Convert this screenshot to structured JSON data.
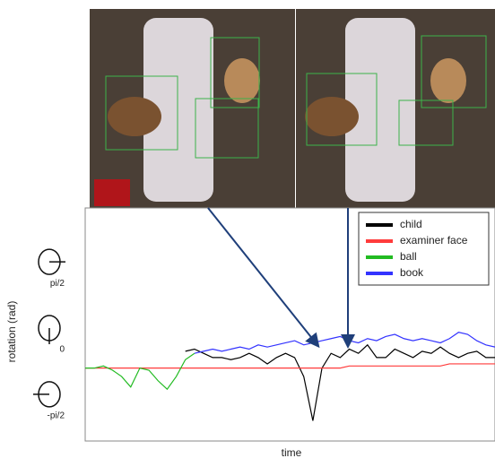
{
  "chart_data": {
    "type": "line",
    "ylabel": "rotation (rad)",
    "xlabel": "time",
    "x": [
      0,
      1,
      2,
      3,
      4,
      5,
      6,
      7,
      8,
      9,
      10,
      11,
      12,
      13,
      14,
      15,
      16,
      17,
      18,
      19,
      20,
      21,
      22,
      23,
      24,
      25,
      26,
      27,
      28,
      29,
      30,
      31,
      32,
      33,
      34,
      35,
      36,
      37,
      38,
      39,
      40,
      41,
      42,
      43,
      44,
      45
    ],
    "xlim": [
      0,
      45
    ],
    "ylim": [
      -2.68,
      2.85
    ],
    "yticks": [
      {
        "value": 1.5708,
        "label": "pi/2"
      },
      {
        "value": 0,
        "label": "0"
      },
      {
        "value": -1.5708,
        "label": "-pi/2"
      }
    ],
    "legend": "upper right",
    "series": [
      {
        "name": "child",
        "color": "#000000",
        "values": [
          null,
          null,
          null,
          null,
          null,
          null,
          null,
          null,
          null,
          null,
          null,
          -0.55,
          -0.5,
          -0.6,
          -0.7,
          -0.7,
          -0.75,
          -0.7,
          -0.6,
          -0.7,
          -0.85,
          -0.7,
          -0.6,
          -0.7,
          -1.15,
          -2.2,
          -0.95,
          -0.6,
          -0.7,
          -0.5,
          -0.6,
          -0.4,
          -0.7,
          -0.7,
          -0.5,
          -0.6,
          -0.7,
          -0.55,
          -0.6,
          -0.45,
          -0.6,
          -0.7,
          -0.6,
          -0.55,
          -0.7,
          -0.7
        ]
      },
      {
        "name": "examiner face",
        "color": "#ff3b3b",
        "values": [
          -0.95,
          -0.95,
          -0.95,
          -0.95,
          -0.95,
          -0.95,
          -0.95,
          -0.95,
          -0.95,
          -0.95,
          -0.95,
          -0.95,
          -0.95,
          -0.95,
          -0.95,
          -0.95,
          -0.95,
          -0.95,
          -0.95,
          -0.95,
          -0.95,
          -0.95,
          -0.95,
          -0.95,
          -0.95,
          -0.95,
          -0.95,
          -0.95,
          -0.95,
          -0.9,
          -0.9,
          -0.9,
          -0.9,
          -0.9,
          -0.9,
          -0.9,
          -0.9,
          -0.9,
          -0.9,
          -0.9,
          -0.85,
          -0.85,
          -0.85,
          -0.85,
          -0.85,
          -0.85
        ]
      },
      {
        "name": "ball",
        "color": "#22bb22",
        "values": [
          -0.95,
          -0.95,
          -0.9,
          -1.0,
          -1.15,
          -1.4,
          -0.95,
          -1.0,
          -1.25,
          -1.45,
          -1.15,
          -0.75,
          -0.6,
          null,
          null,
          null,
          null,
          null,
          null,
          null,
          null,
          null,
          null,
          null,
          null,
          null,
          null,
          null,
          null,
          null,
          null,
          null,
          null,
          null,
          null,
          null,
          null,
          null,
          null,
          null,
          null,
          null,
          null,
          null,
          null,
          null
        ]
      },
      {
        "name": "book",
        "color": "#3333ff",
        "values": [
          null,
          null,
          null,
          null,
          null,
          null,
          null,
          null,
          null,
          null,
          null,
          null,
          -0.6,
          -0.55,
          -0.5,
          -0.55,
          -0.5,
          -0.45,
          -0.5,
          -0.4,
          -0.45,
          -0.4,
          -0.35,
          -0.3,
          -0.4,
          -0.35,
          -0.3,
          -0.25,
          -0.2,
          -0.3,
          -0.35,
          -0.25,
          -0.3,
          -0.2,
          -0.15,
          -0.25,
          -0.3,
          -0.25,
          -0.3,
          -0.35,
          -0.25,
          -0.1,
          -0.15,
          -0.3,
          -0.4,
          -0.45
        ]
      }
    ]
  }
}
